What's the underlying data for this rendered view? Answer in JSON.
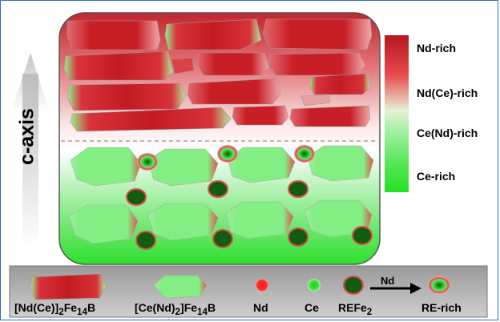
{
  "axis": {
    "label": "c-axis"
  },
  "colorbar": {
    "labels": [
      "Nd-rich",
      "Nd(Ce)-rich",
      "Ce(Nd)-rich",
      "Ce-rich"
    ],
    "colors": {
      "top": "#c8232a",
      "bottom": "#33e633"
    }
  },
  "legend": {
    "items": [
      {
        "label_main": "[Nd(Ce)]",
        "sub1": "2",
        "mid": "Fe",
        "sub2": "14",
        "tail": "B",
        "icon": "nd-rich-grain-icon"
      },
      {
        "label_main": "[Ce(Nd)",
        "sub1": "2",
        "mid": "]Fe",
        "sub2": "14",
        "tail": "B",
        "icon": "ce-rich-grain-icon"
      },
      {
        "label_main": "Nd",
        "icon": "nd-dot-icon"
      },
      {
        "label_main": "Ce",
        "icon": "ce-dot-icon"
      },
      {
        "label_main": "REFe",
        "sub1": "2",
        "icon": "refe2-particle-icon"
      },
      {
        "label_main": "RE-rich",
        "icon": "re-rich-particle-icon"
      }
    ],
    "arrow_label": "Nd"
  }
}
